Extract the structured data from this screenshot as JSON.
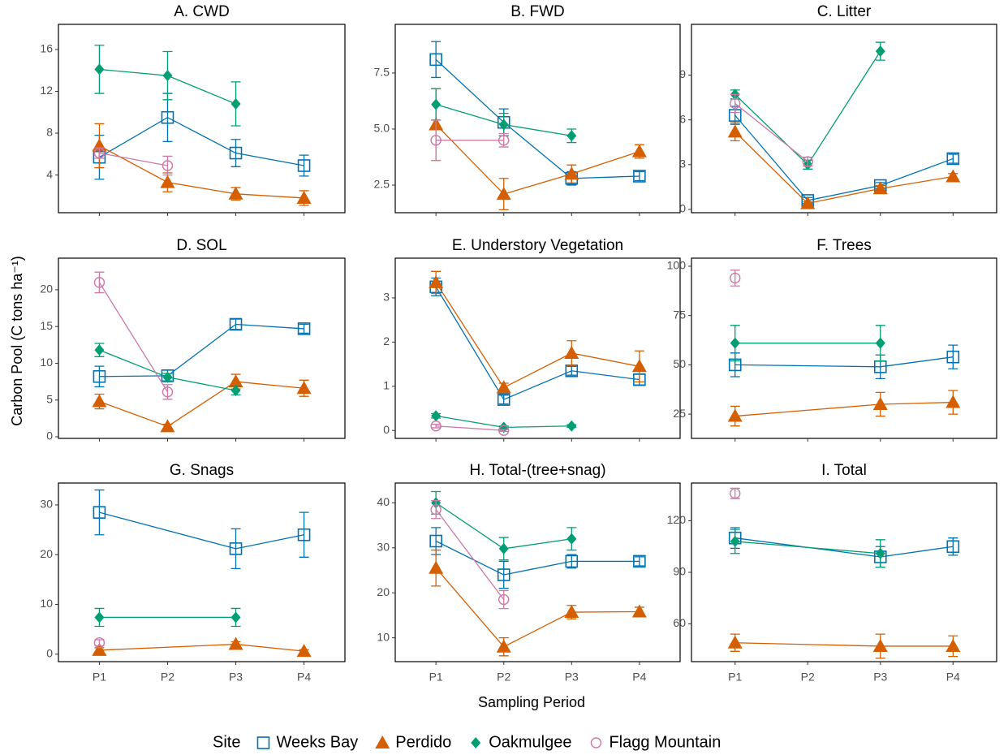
{
  "y_label": "Carbon Pool (C tons ha⁻¹)",
  "x_label": "Sampling Period",
  "categories": [
    "P1",
    "P2",
    "P3",
    "P4"
  ],
  "legend": {
    "title": "Site",
    "position": "bottom",
    "series": [
      {
        "name": "Weeks Bay",
        "color": "#0072B2",
        "marker": "open-square"
      },
      {
        "name": "Perdido",
        "color": "#D55E00",
        "marker": "filled-triangle"
      },
      {
        "name": "Oakmulgee",
        "color": "#009E73",
        "marker": "filled-diamond"
      },
      {
        "name": "Flagg Mountain",
        "color": "#CC79A7",
        "marker": "open-circle"
      }
    ]
  },
  "chart_data": [
    {
      "type": "line",
      "title": "A. CWD",
      "ylim": [
        0.4,
        18.4
      ],
      "yticks": [
        4,
        8,
        12,
        16
      ],
      "series": [
        {
          "x": [
            "P1",
            "P2",
            "P3",
            "P4"
          ],
          "values": [
            5.7,
            9.5,
            6.1,
            4.9
          ],
          "errors": [
            2.1,
            2.3,
            1.3,
            1.0
          ]
        },
        {
          "x": [
            "P1",
            "P2",
            "P3",
            "P4"
          ],
          "values": [
            6.8,
            3.3,
            2.2,
            1.8
          ],
          "errors": [
            2.1,
            0.9,
            0.6,
            0.7
          ]
        },
        {
          "x": [
            "P1",
            "P2",
            "P3"
          ],
          "values": [
            14.1,
            13.5,
            10.8
          ],
          "errors": [
            2.3,
            2.3,
            2.1
          ]
        },
        {
          "x": [
            "P1",
            "P2"
          ],
          "values": [
            6.1,
            4.9
          ],
          "errors": [
            0.5,
            0.9
          ]
        }
      ]
    },
    {
      "type": "line",
      "title": "B. FWD",
      "ylim": [
        1.27,
        9.67
      ],
      "yticks": [
        2.5,
        {
          "value": 5,
          "label": "5.0"
        },
        7.5
      ],
      "series": [
        {
          "x": [
            "P1",
            "P2",
            "P3",
            "P4"
          ],
          "values": [
            8.1,
            5.3,
            2.8,
            2.9
          ],
          "errors": [
            0.8,
            0.6,
            0.3,
            0.2
          ]
        },
        {
          "x": [
            "P1",
            "P2",
            "P3",
            "P4"
          ],
          "values": [
            5.2,
            2.1,
            3.0,
            4.0
          ],
          "errors": [
            1.6,
            0.7,
            0.4,
            0.3
          ]
        },
        {
          "x": [
            "P1",
            "P2",
            "P3"
          ],
          "values": [
            6.1,
            5.2,
            4.7
          ],
          "errors": [
            0.7,
            0.5,
            0.3
          ]
        },
        {
          "x": [
            "P1",
            "P2"
          ],
          "values": [
            4.5,
            4.5
          ],
          "errors": [
            0.9,
            0.3
          ]
        }
      ]
    },
    {
      "type": "line",
      "title": "C. Litter",
      "ylim": [
        -0.22,
        12.4
      ],
      "yticks": [
        0,
        3,
        6,
        9
      ],
      "series": [
        {
          "x": [
            "P1",
            "P2",
            "P3",
            "P4"
          ],
          "values": [
            6.3,
            0.6,
            1.6,
            3.4
          ],
          "errors": [
            0.6,
            0.2,
            0.2,
            0.3
          ]
        },
        {
          "x": [
            "P1",
            "P2",
            "P3",
            "P4"
          ],
          "values": [
            5.2,
            0.4,
            1.4,
            2.2
          ],
          "errors": [
            0.6,
            0.1,
            0.2,
            0.2
          ]
        },
        {
          "x": [
            "P1",
            "P2",
            "P3"
          ],
          "values": [
            7.7,
            3.0,
            10.6
          ],
          "errors": [
            0.3,
            0.3,
            0.6
          ]
        },
        {
          "x": [
            "P1",
            "P2"
          ],
          "values": [
            7.1,
            3.2
          ],
          "errors": [
            0.6,
            0.3
          ]
        }
      ]
    },
    {
      "type": "line",
      "title": "D. SOL",
      "ylim": [
        -0.22,
        24.3
      ],
      "yticks": [
        0,
        5,
        10,
        15,
        20
      ],
      "series": [
        {
          "x": [
            "P1",
            "P2",
            "P3",
            "P4"
          ],
          "values": [
            8.2,
            8.3,
            15.3,
            14.7
          ],
          "errors": [
            1.4,
            0.8,
            0.7,
            0.6
          ]
        },
        {
          "x": [
            "P1",
            "P2",
            "P3",
            "P4"
          ],
          "values": [
            4.8,
            1.4,
            7.5,
            6.6
          ],
          "errors": [
            1.0,
            0.3,
            1.0,
            1.1
          ]
        },
        {
          "x": [
            "P1",
            "P2",
            "P3"
          ],
          "values": [
            11.8,
            8.1,
            6.3
          ],
          "errors": [
            0.9,
            0.5,
            0.6
          ]
        },
        {
          "x": [
            "P1",
            "P2"
          ],
          "values": [
            21.0,
            6.1
          ],
          "errors": [
            1.4,
            1.0
          ]
        }
      ]
    },
    {
      "type": "line",
      "title": "E. Understory Vegetation",
      "ylim": [
        -0.18,
        3.9
      ],
      "yticks": [
        0,
        1,
        2,
        3
      ],
      "series": [
        {
          "x": [
            "P1",
            "P2",
            "P3",
            "P4"
          ],
          "values": [
            3.25,
            0.7,
            1.35,
            1.15
          ],
          "errors": [
            0.2,
            0.1,
            0.1,
            0.12
          ]
        },
        {
          "x": [
            "P1",
            "P2",
            "P3",
            "P4"
          ],
          "values": [
            3.35,
            0.97,
            1.75,
            1.45
          ],
          "errors": [
            0.25,
            0.1,
            0.28,
            0.35
          ]
        },
        {
          "x": [
            "P1",
            "P2",
            "P3"
          ],
          "values": [
            0.33,
            0.07,
            0.1
          ],
          "errors": [
            0.05,
            0.03,
            0.03
          ]
        },
        {
          "x": [
            "P1",
            "P2"
          ],
          "values": [
            0.1,
            0.0
          ],
          "errors": [
            0.04,
            0.02
          ]
        }
      ]
    },
    {
      "type": "line",
      "title": "F. Trees",
      "ylim": [
        12.7,
        104.1
      ],
      "yticks": [
        25,
        50,
        75,
        100
      ],
      "series": [
        {
          "x": [
            "P1",
            "P3",
            "P4"
          ],
          "values": [
            50,
            49,
            54
          ],
          "errors": [
            6,
            6,
            6
          ]
        },
        {
          "x": [
            "P1",
            "P3",
            "P4"
          ],
          "values": [
            24,
            30,
            31
          ],
          "errors": [
            5,
            6,
            6
          ]
        },
        {
          "x": [
            "P1",
            "P3"
          ],
          "values": [
            61,
            61
          ],
          "errors": [
            9,
            9
          ]
        },
        {
          "x": [
            "P1"
          ],
          "values": [
            94
          ],
          "errors": [
            4
          ]
        }
      ]
    },
    {
      "type": "line",
      "title": "G. Snags",
      "ylim": [
        -1.5,
        34.4
      ],
      "yticks": [
        0,
        10,
        20,
        30
      ],
      "series": [
        {
          "x": [
            "P1",
            "P3",
            "P4"
          ],
          "values": [
            28.5,
            21.2,
            24
          ],
          "errors": [
            4.5,
            4,
            4.5
          ]
        },
        {
          "x": [
            "P1",
            "P3",
            "P4"
          ],
          "values": [
            0.8,
            2.0,
            0.6
          ],
          "errors": [
            0.5,
            0.5,
            0.3
          ]
        },
        {
          "x": [
            "P1",
            "P3"
          ],
          "values": [
            7.4,
            7.4
          ],
          "errors": [
            1.8,
            1.8
          ]
        },
        {
          "x": [
            "P1"
          ],
          "values": [
            2.3
          ],
          "errors": [
            0.6
          ]
        }
      ]
    },
    {
      "type": "line",
      "title": "H. Total-(tree+snag)",
      "ylim": [
        4.7,
        44.4
      ],
      "yticks": [
        10,
        20,
        30,
        40
      ],
      "series": [
        {
          "x": [
            "P1",
            "P2",
            "P3",
            "P4"
          ],
          "values": [
            31.5,
            24,
            27,
            27
          ],
          "errors": [
            3,
            3,
            1.5,
            1
          ]
        },
        {
          "x": [
            "P1",
            "P2",
            "P3",
            "P4"
          ],
          "values": [
            25.5,
            8,
            15.7,
            15.8
          ],
          "errors": [
            4,
            2,
            1.5,
            1
          ]
        },
        {
          "x": [
            "P1",
            "P2",
            "P3"
          ],
          "values": [
            40,
            29.8,
            32
          ],
          "errors": [
            2.5,
            2.5,
            2.5
          ]
        },
        {
          "x": [
            "P1",
            "P2"
          ],
          "values": [
            38.5,
            18.5
          ],
          "errors": [
            2,
            2
          ]
        }
      ]
    },
    {
      "type": "line",
      "title": "I. Total",
      "ylim": [
        38,
        142
      ],
      "yticks": [
        60,
        90,
        120
      ],
      "series": [
        {
          "x": [
            "P1",
            "P3",
            "P4"
          ],
          "values": [
            110,
            99,
            105
          ],
          "errors": [
            6,
            6,
            5
          ]
        },
        {
          "x": [
            "P1",
            "P3",
            "P4"
          ],
          "values": [
            49,
            47,
            47
          ],
          "errors": [
            5,
            7,
            6
          ]
        },
        {
          "x": [
            "P1",
            "P3"
          ],
          "values": [
            108,
            101
          ],
          "errors": [
            7,
            8
          ]
        },
        {
          "x": [
            "P1"
          ],
          "values": [
            136
          ],
          "errors": [
            3
          ]
        }
      ]
    }
  ]
}
